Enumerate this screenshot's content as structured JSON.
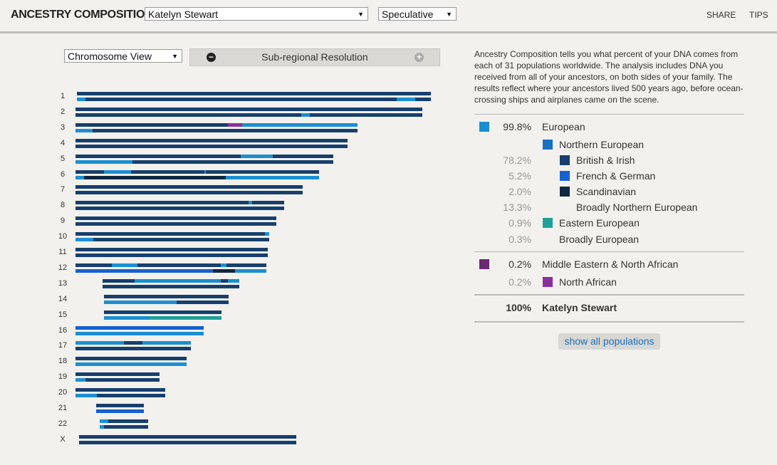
{
  "header": {
    "title": "ANCESTRY COMPOSITION",
    "profile_select": "Katelyn Stewart",
    "mode_select": "Speculative",
    "links": [
      "SHARE",
      "TIPS"
    ]
  },
  "controls": {
    "view_select": "Chromosome View",
    "resolution": "Sub-regional Resolution"
  },
  "chromosomes": [
    "1",
    "2",
    "3",
    "4",
    "5",
    "6",
    "7",
    "8",
    "9",
    "10",
    "11",
    "12",
    "13",
    "14",
    "15",
    "16",
    "17",
    "18",
    "19",
    "20",
    "21",
    "22",
    "X"
  ],
  "description": "Ancestry Composition tells you what percent of your DNA comes from each of 31 populations worldwide. The analysis includes DNA you received from all of your ancestors, on both sides of your family. The results reflect where your ancestors lived 500 years ago, before ocean-crossing ships and airplanes came on the scene.",
  "population_groups": [
    [
      {
        "percent": "99.8%",
        "name": "European",
        "level": 0,
        "color": "#1b8fd2"
      },
      {
        "name": "Northern European",
        "level": 1,
        "color": "#1a6fbf"
      },
      {
        "percent": "78.2%",
        "name": "British & Irish",
        "level": 2,
        "color": "#173f6e"
      },
      {
        "percent": "5.2%",
        "name": "French & German",
        "level": 2,
        "color": "#1661d0"
      },
      {
        "percent": "2.0%",
        "name": "Scandinavian",
        "level": 2,
        "color": "#0e2640"
      },
      {
        "percent": "13.3%",
        "name": "Broadly Northern European",
        "level": 2
      },
      {
        "percent": "0.9%",
        "name": "Eastern European",
        "level": 1,
        "color": "#1fa19a"
      },
      {
        "percent": "0.3%",
        "name": "Broadly European",
        "level": 1
      }
    ],
    [
      {
        "percent": "0.2%",
        "name": "Middle Eastern & North African",
        "level": 0,
        "color": "#6a2a73"
      },
      {
        "percent": "0.2%",
        "name": "North African",
        "level": 1,
        "color": "#8b2ea0"
      }
    ]
  ],
  "total": {
    "percent": "100%",
    "name": "Katelyn Stewart"
  },
  "button": "show all populations"
}
